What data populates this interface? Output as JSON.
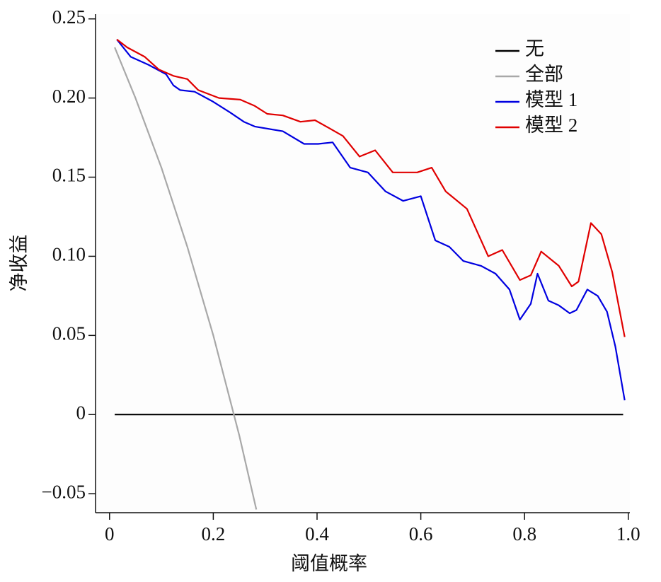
{
  "chart_data": {
    "type": "line",
    "xlabel": "阈值概率",
    "ylabel": "净收益",
    "xlim": [
      -0.027,
      1.003
    ],
    "ylim": [
      -0.062,
      0.253
    ],
    "xticks": [
      0,
      0.2,
      0.4,
      0.6,
      0.8,
      {
        "value": 1,
        "label": "1.0"
      }
    ],
    "yticks": [
      {
        "value": -0.05,
        "label": "−0.05"
      },
      0,
      0.05,
      {
        "value": 0.1,
        "label": "0.10"
      },
      0.15,
      {
        "value": 0.2,
        "label": "0.20"
      },
      0.25
    ],
    "legend": "upper right",
    "series": [
      {
        "name": "无",
        "color": "#000000",
        "x": [
          0.01,
          0.99
        ],
        "values": [
          0,
          0
        ]
      },
      {
        "name": "全部",
        "color": "#a8a8a8",
        "x": [
          0.01,
          0.05,
          0.1,
          0.15,
          0.2,
          0.25,
          0.283
        ],
        "values": [
          0.232,
          0.2,
          0.156,
          0.106,
          0.05,
          -0.013,
          -0.06
        ]
      },
      {
        "name": "模型 1",
        "color": "#0000e0",
        "x": [
          0.014,
          0.041,
          0.075,
          0.109,
          0.123,
          0.136,
          0.164,
          0.198,
          0.232,
          0.259,
          0.28,
          0.334,
          0.375,
          0.402,
          0.43,
          0.464,
          0.498,
          0.532,
          0.566,
          0.6,
          0.628,
          0.655,
          0.682,
          0.716,
          0.744,
          0.771,
          0.791,
          0.812,
          0.825,
          0.846,
          0.866,
          0.887,
          0.9,
          0.921,
          0.941,
          0.959,
          0.975,
          0.993
        ],
        "values": [
          0.237,
          0.226,
          0.221,
          0.215,
          0.208,
          0.205,
          0.204,
          0.198,
          0.191,
          0.185,
          0.182,
          0.179,
          0.171,
          0.171,
          0.172,
          0.156,
          0.153,
          0.141,
          0.135,
          0.138,
          0.11,
          0.106,
          0.097,
          0.094,
          0.089,
          0.079,
          0.06,
          0.07,
          0.089,
          0.072,
          0.069,
          0.064,
          0.066,
          0.079,
          0.075,
          0.065,
          0.043,
          0.009
        ]
      },
      {
        "name": "模型 2",
        "color": "#e00000",
        "x": [
          0.014,
          0.034,
          0.068,
          0.095,
          0.123,
          0.15,
          0.171,
          0.211,
          0.252,
          0.28,
          0.304,
          0.334,
          0.368,
          0.396,
          0.423,
          0.45,
          0.482,
          0.512,
          0.546,
          0.593,
          0.621,
          0.648,
          0.689,
          0.73,
          0.757,
          0.791,
          0.812,
          0.832,
          0.866,
          0.891,
          0.904,
          0.928,
          0.948,
          0.969,
          0.993
        ],
        "values": [
          0.237,
          0.232,
          0.226,
          0.218,
          0.214,
          0.212,
          0.205,
          0.2,
          0.199,
          0.195,
          0.19,
          0.189,
          0.185,
          0.186,
          0.181,
          0.176,
          0.163,
          0.167,
          0.153,
          0.153,
          0.156,
          0.141,
          0.13,
          0.1,
          0.104,
          0.085,
          0.088,
          0.103,
          0.094,
          0.081,
          0.084,
          0.121,
          0.114,
          0.09,
          0.049
        ]
      }
    ]
  }
}
